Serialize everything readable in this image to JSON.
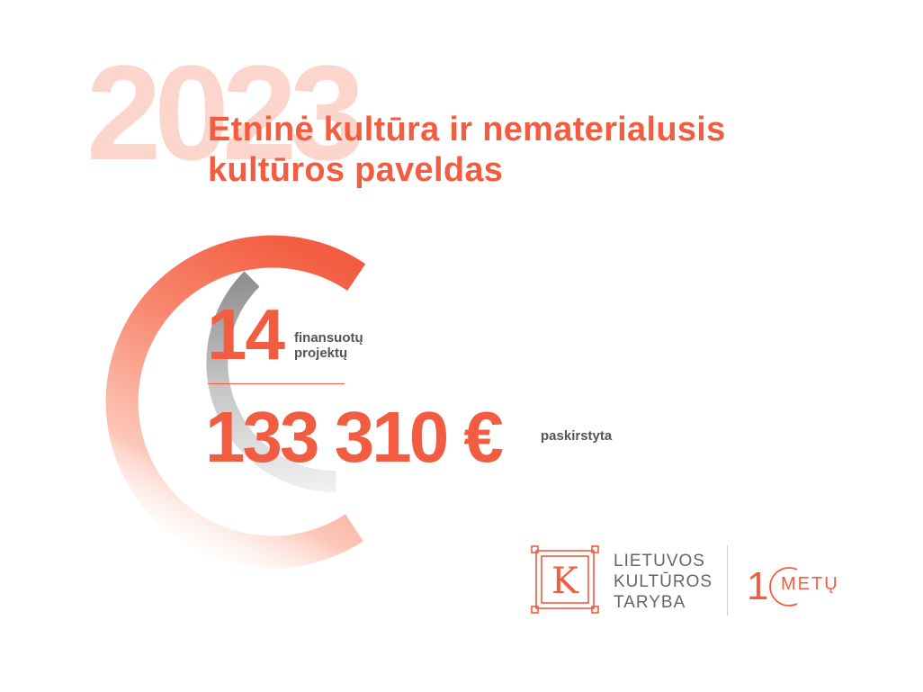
{
  "header": {
    "year": "2023",
    "title_line1": "Etninė kultūra ir nematerialusis",
    "title_line2": "kultūros paveldas"
  },
  "stats": {
    "projects_count": "14",
    "projects_label_line1": "finansuotų",
    "projects_label_line2": "projektų",
    "amount": "133 310 €",
    "amount_label": "paskirstyta"
  },
  "logo": {
    "letter": "K",
    "line1": "LIETUVOS",
    "line2": "KULTŪROS",
    "line3": "TARYBA",
    "anniversary_digit": "1",
    "anniversary_word": "METŲ"
  },
  "colors": {
    "accent": "#f25c40",
    "year_watermark": "#fcd2c8",
    "label_text": "#555555"
  }
}
